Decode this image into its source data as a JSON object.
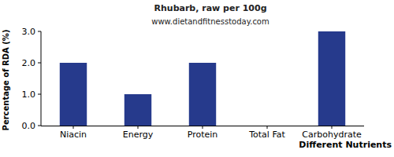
{
  "chart_data": {
    "type": "bar",
    "title": "Rhubarb, raw per 100g",
    "subtitle": "www.dietandfitnesstoday.com",
    "x_label": "Different Nutrients",
    "y_label": "Percentage of RDA (%)",
    "categories": [
      "Niacin",
      "Energy",
      "Protein",
      "Total Fat",
      "Carbohydrate"
    ],
    "values": [
      2,
      1,
      2,
      0,
      3
    ],
    "color": "#263a8c",
    "ylim": [
      0,
      3
    ],
    "yticks": [
      {
        "value": 0,
        "label": "0.0"
      },
      {
        "value": 1,
        "label": "1.0"
      },
      {
        "value": 2,
        "label": "2.0"
      },
      {
        "value": 3,
        "label": "3.0"
      }
    ],
    "grid": false
  }
}
